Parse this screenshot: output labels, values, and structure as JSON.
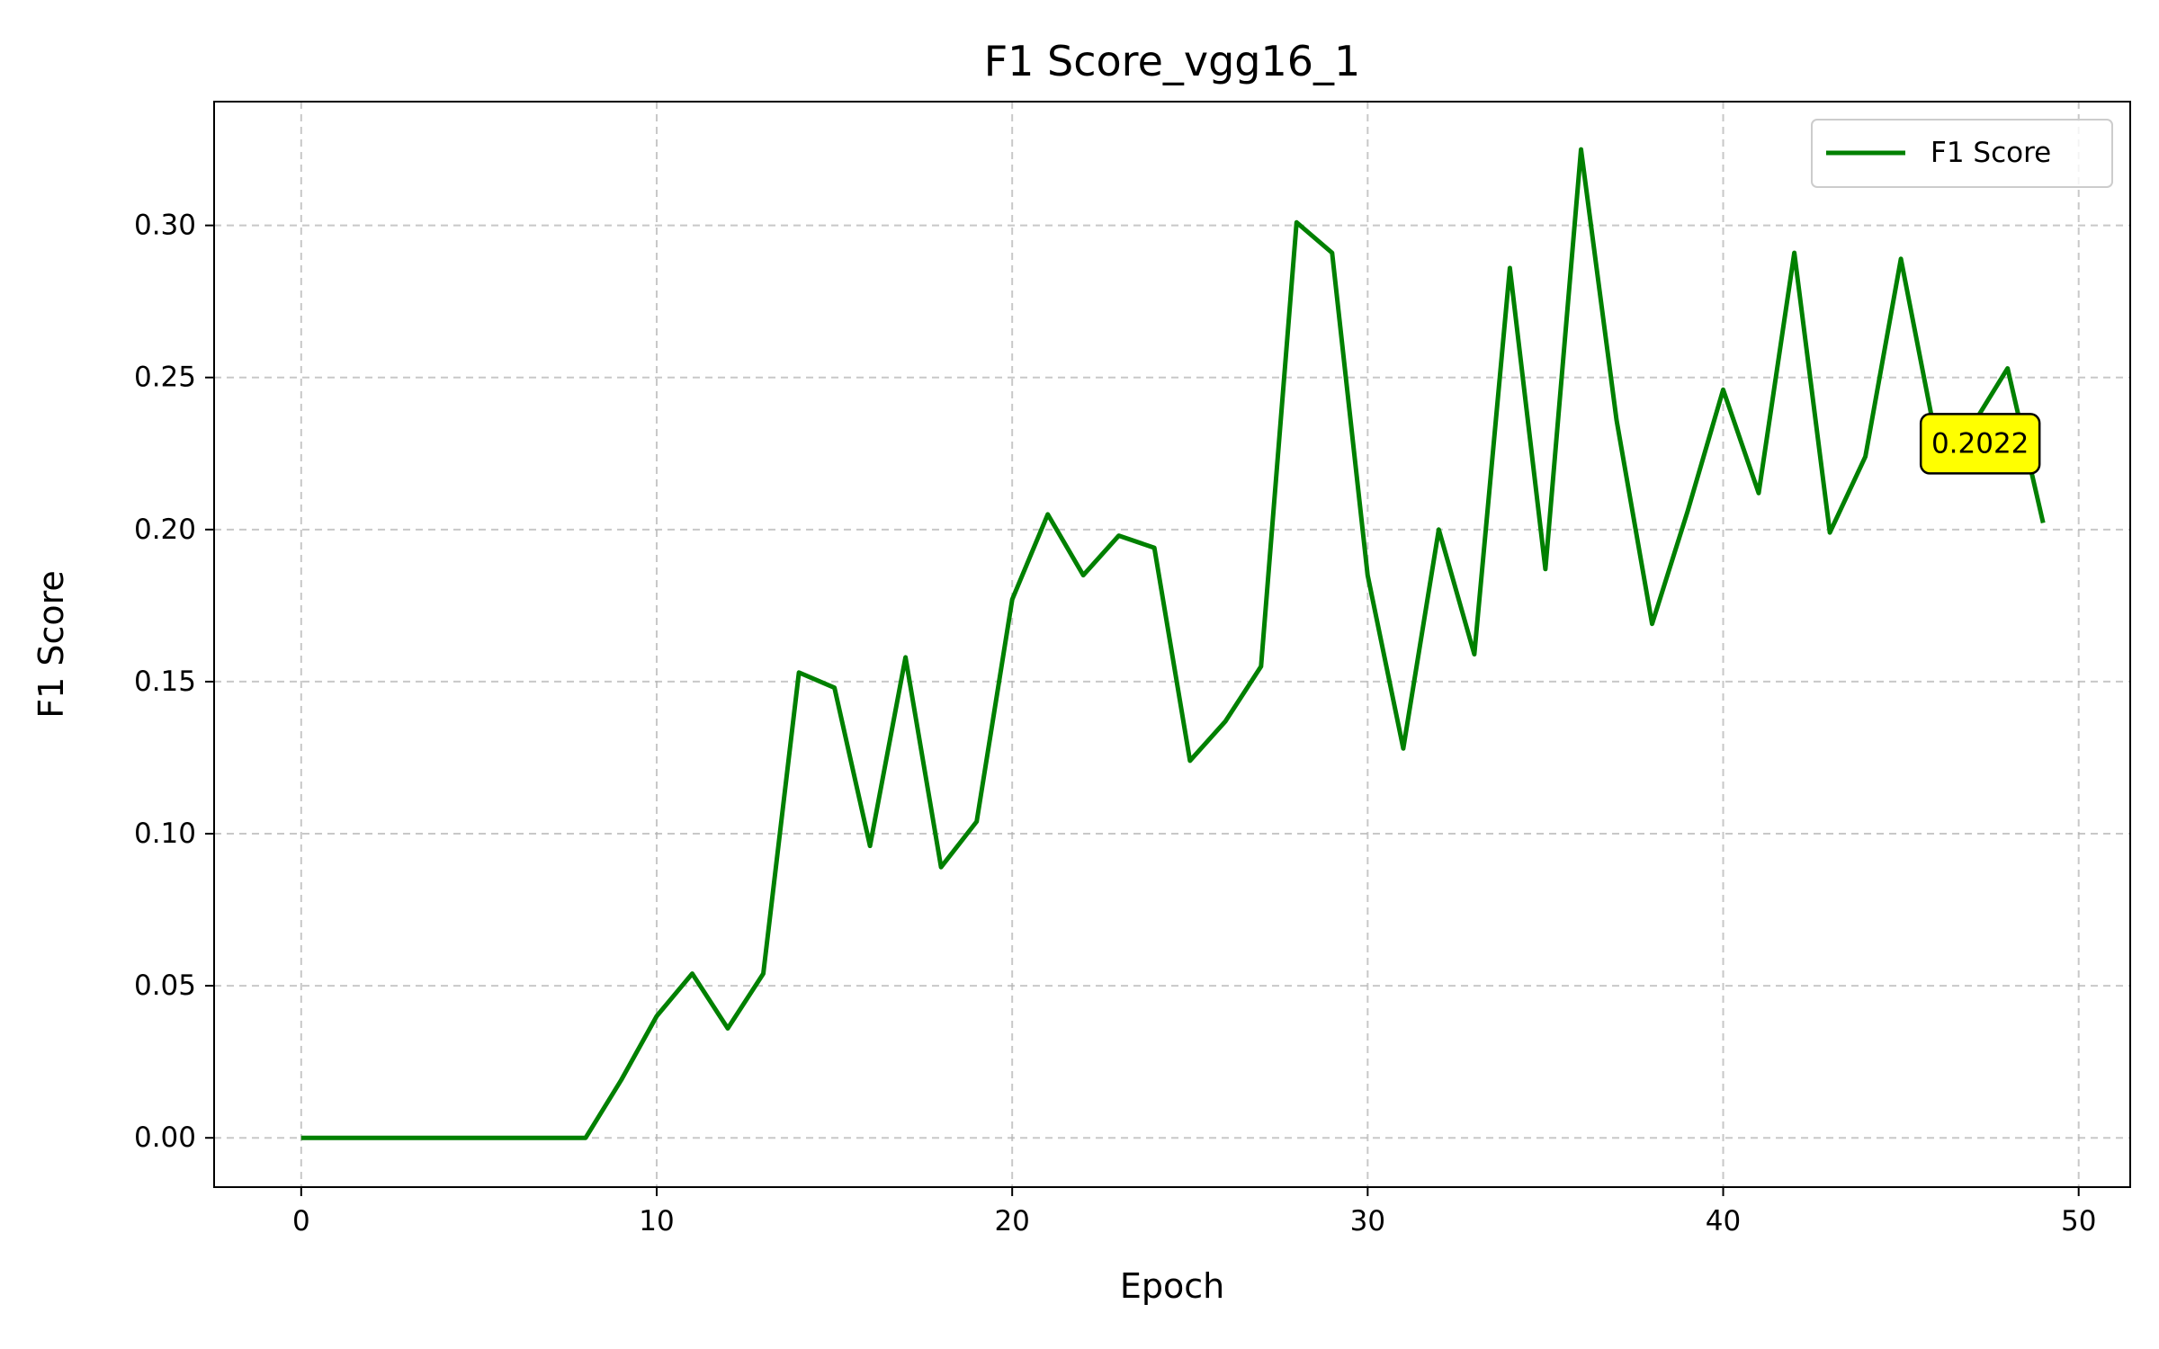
{
  "chart_data": {
    "type": "line",
    "title": "F1 Score_vgg16_1",
    "xlabel": "Epoch",
    "ylabel": "F1 Score",
    "xlim": [
      -2.45,
      51.45
    ],
    "ylim": [
      -0.0162,
      0.3407
    ],
    "xticks": [
      0,
      10,
      20,
      30,
      40,
      50
    ],
    "yticks": [
      0.0,
      0.05,
      0.1,
      0.15,
      0.2,
      0.25,
      0.3
    ],
    "xtick_labels": [
      "0",
      "10",
      "20",
      "30",
      "40",
      "50"
    ],
    "ytick_labels": [
      "0.00",
      "0.05",
      "0.10",
      "0.15",
      "0.20",
      "0.25",
      "0.30"
    ],
    "grid": true,
    "legend_position": "top-right",
    "series": [
      {
        "name": "F1 Score",
        "color": "#008000",
        "x": [
          0,
          1,
          2,
          3,
          4,
          5,
          6,
          7,
          8,
          9,
          10,
          11,
          12,
          13,
          14,
          15,
          16,
          17,
          18,
          19,
          20,
          21,
          22,
          23,
          24,
          25,
          26,
          27,
          28,
          29,
          30,
          31,
          32,
          33,
          34,
          35,
          36,
          37,
          38,
          39,
          40,
          41,
          42,
          43,
          44,
          45,
          46,
          47,
          48,
          49
        ],
        "y": [
          0,
          0,
          0,
          0,
          0,
          0,
          0,
          0,
          0,
          0.019,
          0.04,
          0.054,
          0.036,
          0.054,
          0.153,
          0.148,
          0.096,
          0.158,
          0.089,
          0.104,
          0.177,
          0.205,
          0.185,
          0.198,
          0.194,
          0.124,
          0.137,
          0.155,
          0.301,
          0.291,
          0.185,
          0.128,
          0.2,
          0.159,
          0.286,
          0.187,
          0.325,
          0.236,
          0.169,
          0.206,
          0.246,
          0.212,
          0.291,
          0.199,
          0.224,
          0.289,
          0.229,
          0.234,
          0.253,
          0.2022
        ]
      }
    ],
    "annotation": {
      "text": "0.2022",
      "x": 49,
      "y": 0.2022,
      "background": "#ffff00"
    }
  }
}
